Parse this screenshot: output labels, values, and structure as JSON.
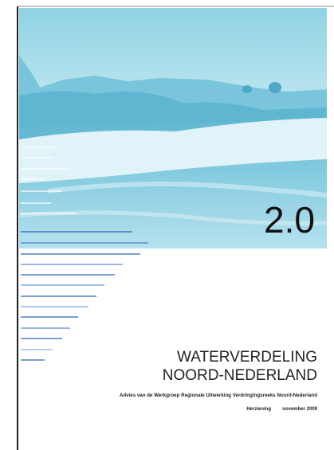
{
  "cover": {
    "version": "2.0",
    "title_lines": [
      "WATERVERDELING",
      "NOORD-NEDERLAND"
    ],
    "subtitle": "Advies van de Werkgroep Regionale Uitwerking Verdringingsreeks Noord-Nederland",
    "revision": "Herziening",
    "date": "november 2009"
  }
}
